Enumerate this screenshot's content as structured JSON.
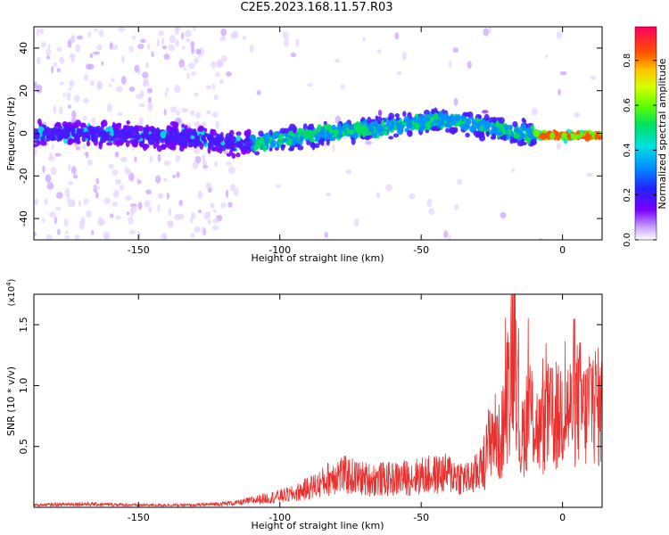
{
  "figure": {
    "title": "C2E5.2023.168.11.57.R03"
  },
  "colors": {
    "line": "#e8302e",
    "axis": "#000000"
  },
  "colorbar": {
    "label": "Normalized spectral amplitude",
    "ticks": [
      "0.0",
      "0.2",
      "0.4",
      "0.6",
      "0.8"
    ],
    "tick_values": [
      0.0,
      0.2,
      0.4,
      0.6,
      0.8
    ],
    "range": [
      0,
      0.95
    ]
  },
  "chart_data": [
    {
      "type": "heatmap",
      "xlabel": "Height of straight line (km)",
      "ylabel": "Frequency (Hz)",
      "xlim": [
        -187,
        14
      ],
      "ylim": [
        -50,
        50
      ],
      "x_ticks": [
        -150,
        -100,
        -50,
        0
      ],
      "x_tick_labels": [
        "-150",
        "-100",
        "-50",
        "0"
      ],
      "y_ticks": [
        -40,
        -20,
        0,
        20,
        40
      ],
      "y_tick_labels": [
        "-40",
        "-20",
        "0",
        "20",
        "40"
      ],
      "ridge": {
        "x": [
          -185,
          -170,
          -150,
          -130,
          -115,
          -100,
          -85,
          -70,
          -55,
          -45,
          -35,
          -25,
          -15,
          -8,
          0,
          10
        ],
        "y": [
          0,
          0,
          -1,
          -2,
          -5,
          -3,
          0,
          2,
          4,
          6,
          5,
          3,
          0,
          -1,
          -1,
          -1
        ]
      }
    },
    {
      "type": "line",
      "title": "",
      "xlabel": "Height of straight line (km)",
      "ylabel": "SNR (10 * v/v)",
      "y_exponent": "(x10",
      "y_exponent_power": "4",
      "y_exponent_close": ")",
      "xlim": [
        -187,
        14
      ],
      "ylim": [
        0,
        1.75
      ],
      "x_ticks": [
        -150,
        -100,
        -50,
        0
      ],
      "x_tick_labels": [
        "-150",
        "-100",
        "-50",
        "0"
      ],
      "y_ticks": [
        0.5,
        1.0,
        1.5
      ],
      "y_tick_labels": [
        "0.5",
        "1.0",
        "1.5"
      ],
      "series": [
        {
          "name": "",
          "x": [
            -187,
            -170,
            -150,
            -130,
            -115,
            -105,
            -95,
            -85,
            -80,
            -70,
            -60,
            -50,
            -40,
            -33,
            -28,
            -25,
            -22,
            -19,
            -17,
            -15,
            -12,
            -8,
            -5,
            -2,
            0,
            3,
            6,
            8,
            10,
            12,
            14
          ],
          "y": [
            0.02,
            0.03,
            0.02,
            0.02,
            0.04,
            0.08,
            0.12,
            0.22,
            0.3,
            0.25,
            0.25,
            0.28,
            0.3,
            0.25,
            0.35,
            0.7,
            0.55,
            1.1,
            1.75,
            0.5,
            0.9,
            0.65,
            0.8,
            0.75,
            0.9,
            0.85,
            0.95,
            0.8,
            1.0,
            0.9,
            0.85
          ]
        }
      ]
    }
  ]
}
